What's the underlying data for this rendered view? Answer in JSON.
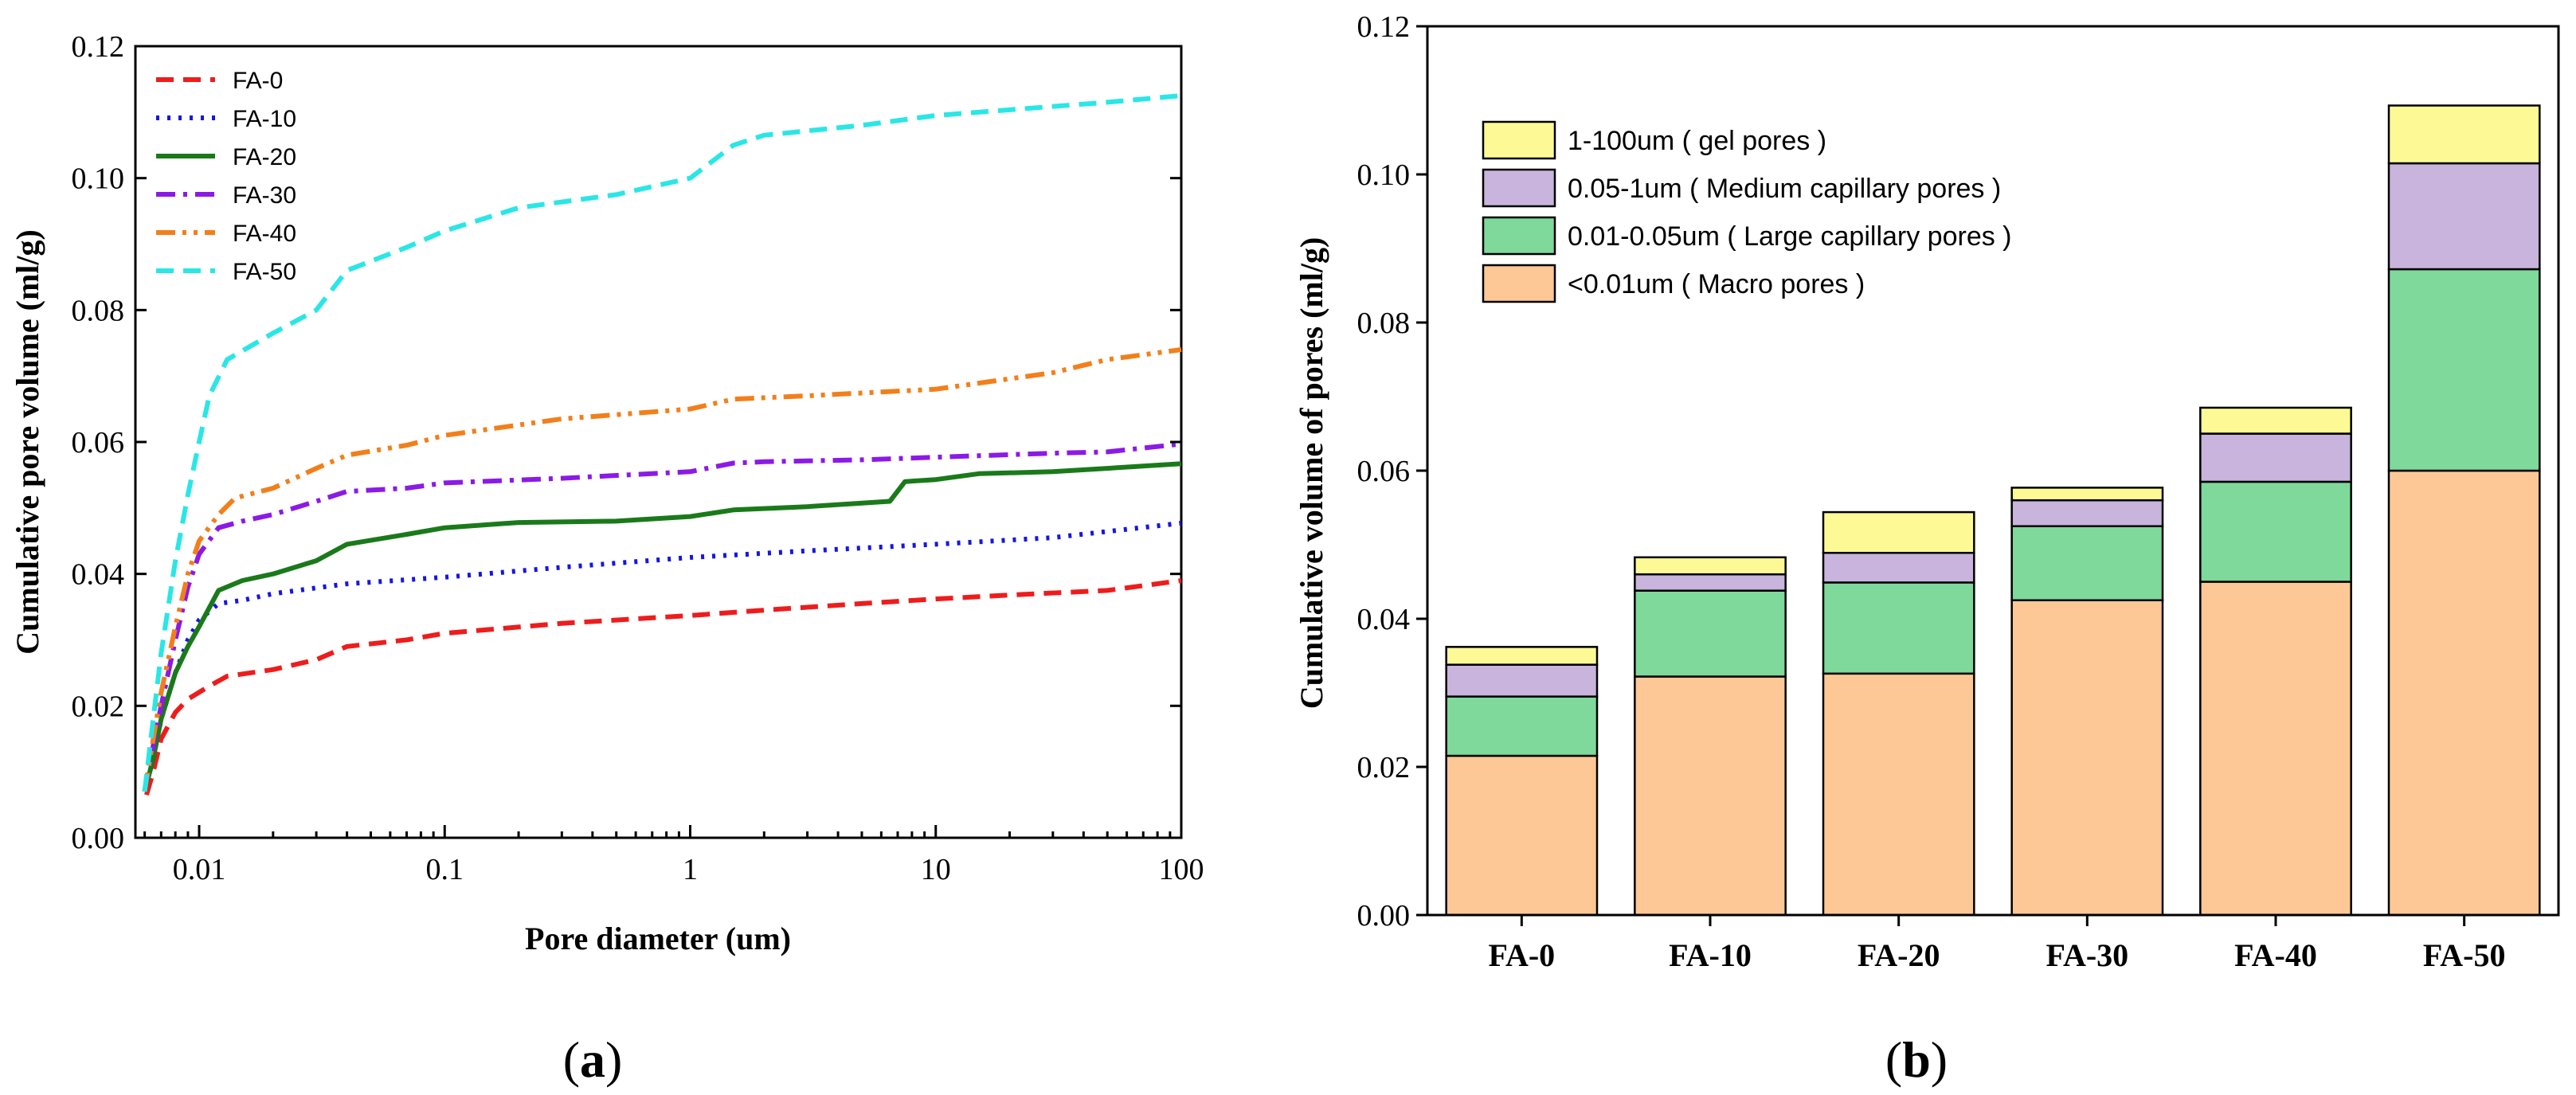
{
  "chart_data": [
    {
      "type": "line",
      "panel": "(a)",
      "panel_parts": {
        "open": "(",
        "letter": "a",
        "close": ")"
      },
      "xlabel": "Pore diameter (um)",
      "ylabel": "Cumulative pore volume (ml/g)",
      "xscale": "log",
      "xlim": [
        0.0055,
        100
      ],
      "ylim": [
        0,
        0.12
      ],
      "xticks": [
        0.01,
        0.1,
        1,
        10,
        100
      ],
      "xtick_labels": [
        "0.01",
        "0.1",
        "1",
        "10",
        "100"
      ],
      "yticks": [
        0,
        0.02,
        0.04,
        0.06,
        0.08,
        0.1,
        0.12
      ],
      "ytick_labels": [
        "0.00",
        "0.02",
        "0.04",
        "0.06",
        "0.08",
        "0.10",
        "0.12"
      ],
      "legend_position": "top-left",
      "series": [
        {
          "name": "FA-0",
          "color": "#ee1c1c",
          "style": "dashed",
          "points": [
            [
              0.0061,
              0.0065
            ],
            [
              0.0065,
              0.01
            ],
            [
              0.007,
              0.015
            ],
            [
              0.008,
              0.019
            ],
            [
              0.009,
              0.021
            ],
            [
              0.011,
              0.023
            ],
            [
              0.013,
              0.0245
            ],
            [
              0.02,
              0.0255
            ],
            [
              0.03,
              0.027
            ],
            [
              0.04,
              0.029
            ],
            [
              0.07,
              0.03
            ],
            [
              0.1,
              0.031
            ],
            [
              0.3,
              0.0325
            ],
            [
              1,
              0.0337
            ],
            [
              2,
              0.0345
            ],
            [
              5,
              0.0355
            ],
            [
              10,
              0.0362
            ],
            [
              20,
              0.0368
            ],
            [
              50,
              0.0375
            ],
            [
              100,
              0.039
            ]
          ]
        },
        {
          "name": "FA-10",
          "color": "#1515e6",
          "style": "dotted",
          "points": [
            [
              0.006,
              0.007
            ],
            [
              0.0065,
              0.012
            ],
            [
              0.007,
              0.018
            ],
            [
              0.008,
              0.025
            ],
            [
              0.009,
              0.03
            ],
            [
              0.01,
              0.033
            ],
            [
              0.012,
              0.0355
            ],
            [
              0.015,
              0.036
            ],
            [
              0.02,
              0.037
            ],
            [
              0.04,
              0.0385
            ],
            [
              0.1,
              0.0395
            ],
            [
              0.3,
              0.041
            ],
            [
              1,
              0.0425
            ],
            [
              3,
              0.0435
            ],
            [
              10,
              0.0445
            ],
            [
              30,
              0.0455
            ],
            [
              100,
              0.0477
            ]
          ]
        },
        {
          "name": "FA-20",
          "color": "#1a7a1a",
          "style": "solid",
          "points": [
            [
              0.006,
              0.007
            ],
            [
              0.0065,
              0.012
            ],
            [
              0.007,
              0.018
            ],
            [
              0.008,
              0.025
            ],
            [
              0.009,
              0.029
            ],
            [
              0.01,
              0.032
            ],
            [
              0.012,
              0.0375
            ],
            [
              0.015,
              0.039
            ],
            [
              0.02,
              0.04
            ],
            [
              0.03,
              0.042
            ],
            [
              0.04,
              0.0445
            ],
            [
              0.07,
              0.046
            ],
            [
              0.1,
              0.047
            ],
            [
              0.2,
              0.0478
            ],
            [
              0.5,
              0.048
            ],
            [
              1,
              0.0487
            ],
            [
              1.5,
              0.0497
            ],
            [
              3,
              0.0502
            ],
            [
              6.5,
              0.051
            ],
            [
              7.5,
              0.054
            ],
            [
              10,
              0.0543
            ],
            [
              15,
              0.0552
            ],
            [
              30,
              0.0555
            ],
            [
              100,
              0.0567
            ]
          ]
        },
        {
          "name": "FA-30",
          "color": "#8b1ae6",
          "style": "dashdot",
          "points": [
            [
              0.006,
              0.007
            ],
            [
              0.0065,
              0.014
            ],
            [
              0.007,
              0.02
            ],
            [
              0.008,
              0.03
            ],
            [
              0.009,
              0.038
            ],
            [
              0.01,
              0.043
            ],
            [
              0.012,
              0.047
            ],
            [
              0.015,
              0.048
            ],
            [
              0.02,
              0.049
            ],
            [
              0.03,
              0.051
            ],
            [
              0.04,
              0.0525
            ],
            [
              0.07,
              0.053
            ],
            [
              0.1,
              0.0538
            ],
            [
              0.3,
              0.0545
            ],
            [
              1,
              0.0555
            ],
            [
              1.5,
              0.0568
            ],
            [
              2,
              0.057
            ],
            [
              5,
              0.0573
            ],
            [
              10,
              0.0577
            ],
            [
              30,
              0.0583
            ],
            [
              50,
              0.0585
            ],
            [
              100,
              0.0597
            ]
          ]
        },
        {
          "name": "FA-40",
          "color": "#f27f1a",
          "style": "dashdotdot",
          "points": [
            [
              0.006,
              0.007
            ],
            [
              0.0065,
              0.015
            ],
            [
              0.007,
              0.022
            ],
            [
              0.008,
              0.032
            ],
            [
              0.009,
              0.04
            ],
            [
              0.01,
              0.045
            ],
            [
              0.012,
              0.049
            ],
            [
              0.014,
              0.0515
            ],
            [
              0.02,
              0.053
            ],
            [
              0.03,
              0.056
            ],
            [
              0.04,
              0.058
            ],
            [
              0.07,
              0.0595
            ],
            [
              0.1,
              0.061
            ],
            [
              0.3,
              0.0635
            ],
            [
              1,
              0.065
            ],
            [
              1.5,
              0.0665
            ],
            [
              3,
              0.067
            ],
            [
              10,
              0.068
            ],
            [
              30,
              0.0705
            ],
            [
              50,
              0.0725
            ],
            [
              100,
              0.074
            ]
          ]
        },
        {
          "name": "FA-50",
          "color": "#2ae6e6",
          "style": "dashed",
          "points": [
            [
              0.006,
              0.007
            ],
            [
              0.0065,
              0.018
            ],
            [
              0.007,
              0.028
            ],
            [
              0.008,
              0.042
            ],
            [
              0.009,
              0.052
            ],
            [
              0.01,
              0.06
            ],
            [
              0.011,
              0.067
            ],
            [
              0.013,
              0.0725
            ],
            [
              0.02,
              0.0765
            ],
            [
              0.03,
              0.08
            ],
            [
              0.04,
              0.086
            ],
            [
              0.07,
              0.0895
            ],
            [
              0.1,
              0.092
            ],
            [
              0.2,
              0.0955
            ],
            [
              0.5,
              0.0975
            ],
            [
              1,
              0.1
            ],
            [
              1.5,
              0.105
            ],
            [
              2,
              0.1065
            ],
            [
              5,
              0.108
            ],
            [
              10,
              0.1095
            ],
            [
              50,
              0.1115
            ],
            [
              100,
              0.1125
            ]
          ]
        }
      ]
    },
    {
      "type": "bar",
      "stacked": true,
      "panel": "(b)",
      "panel_parts": {
        "open": "(",
        "letter": "b",
        "close": ")"
      },
      "ylabel": "Cumulative volume of pores (ml/g)",
      "ylim": [
        0,
        0.12
      ],
      "yticks": [
        0,
        0.02,
        0.04,
        0.06,
        0.08,
        0.1,
        0.12
      ],
      "ytick_labels": [
        "0.00",
        "0.02",
        "0.04",
        "0.06",
        "0.08",
        "0.10",
        "0.12"
      ],
      "categories": [
        "FA-0",
        "FA-10",
        "FA-20",
        "FA-30",
        "FA-40",
        "FA-50"
      ],
      "legend_position": "top-left",
      "legend_order": [
        3,
        2,
        1,
        0
      ],
      "series": [
        {
          "name": "<0.01um ( Macro pores )",
          "color": "#fdc896",
          "values": [
            0.0215,
            0.0322,
            0.0326,
            0.0425,
            0.045,
            0.06
          ]
        },
        {
          "name": "0.01-0.05um ( Large capillary pores )",
          "color": "#7ed99a",
          "values": [
            0.008,
            0.0116,
            0.0123,
            0.01,
            0.0135,
            0.0272
          ]
        },
        {
          "name": "0.05-1um ( Medium capillary pores )",
          "color": "#c8b4dc",
          "values": [
            0.0043,
            0.0022,
            0.004,
            0.0035,
            0.0065,
            0.0143
          ]
        },
        {
          "name": "1-100um ( gel pores )",
          "color": "#fdfa96",
          "values": [
            0.0024,
            0.0023,
            0.0055,
            0.0017,
            0.0035,
            0.0078
          ]
        }
      ]
    }
  ]
}
